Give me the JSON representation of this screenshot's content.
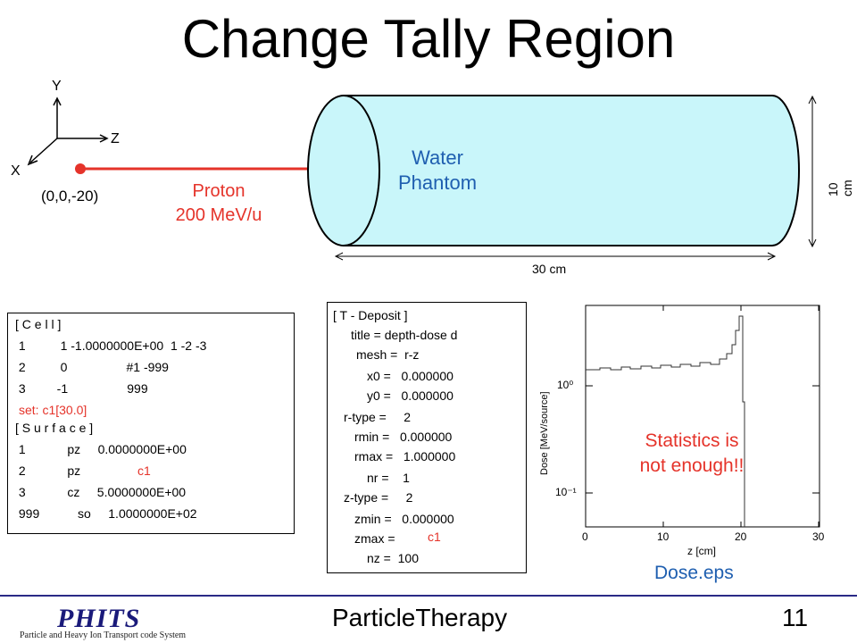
{
  "title": "Change Tally Region",
  "axes": {
    "y": "Y",
    "z": "Z",
    "x": "X"
  },
  "source": {
    "position": "(0,0,-20)",
    "particle": "Proton",
    "energy": "200 MeV/u"
  },
  "phantom": {
    "line1": "Water",
    "line2": "Phantom",
    "length": "30 cm",
    "diameter": "10 cm"
  },
  "cell_box": {
    "lines": [
      "[ C e l l ]",
      " 1          1 -1.0000000E+00  1 -2 -3",
      " 2          0                 #1 -999",
      " 3         -1                 999",
      "set: c1[30.0]",
      "[ S u r f a c e ]",
      " 1            pz     0.0000000E+00",
      " 2            pz     ",
      " 3            cz     5.0000000E+00",
      " 999           so     1.0000000E+02"
    ],
    "surface2_var": "c1"
  },
  "tally_box": {
    "lines": [
      "[ T - Deposit ]",
      "title = depth-dose d",
      "mesh =  r-z",
      "x0 =   0.000000",
      "y0 =   0.000000",
      "r-type =     2",
      "rmin =   0.000000",
      "rmax =   1.000000",
      "nr =    1",
      "z-type =     2",
      "zmin =   0.000000",
      "zmax =",
      "nz =  100"
    ],
    "zmax_var": "c1"
  },
  "plot": {
    "ylabel": "Dose [MeV/source]",
    "xlabel": "z [cm]",
    "xticks": [
      "0",
      "10",
      "20",
      "30"
    ],
    "yticks": [
      "10⁰",
      "10⁻¹"
    ],
    "note_line1": "Statistics is",
    "note_line2": "not enough!!",
    "caption": "Dose.eps"
  },
  "footer": {
    "logo": "PHITS",
    "logo_sub": "Particle and Heavy Ion Transport code System",
    "center": "ParticleTherapy",
    "page": "11"
  },
  "colors": {
    "accent_red": "#e5332a",
    "phantom_fill": "#c9f6fa",
    "caption_blue": "#1f5fb0",
    "footer_blue": "#2a2a86"
  }
}
